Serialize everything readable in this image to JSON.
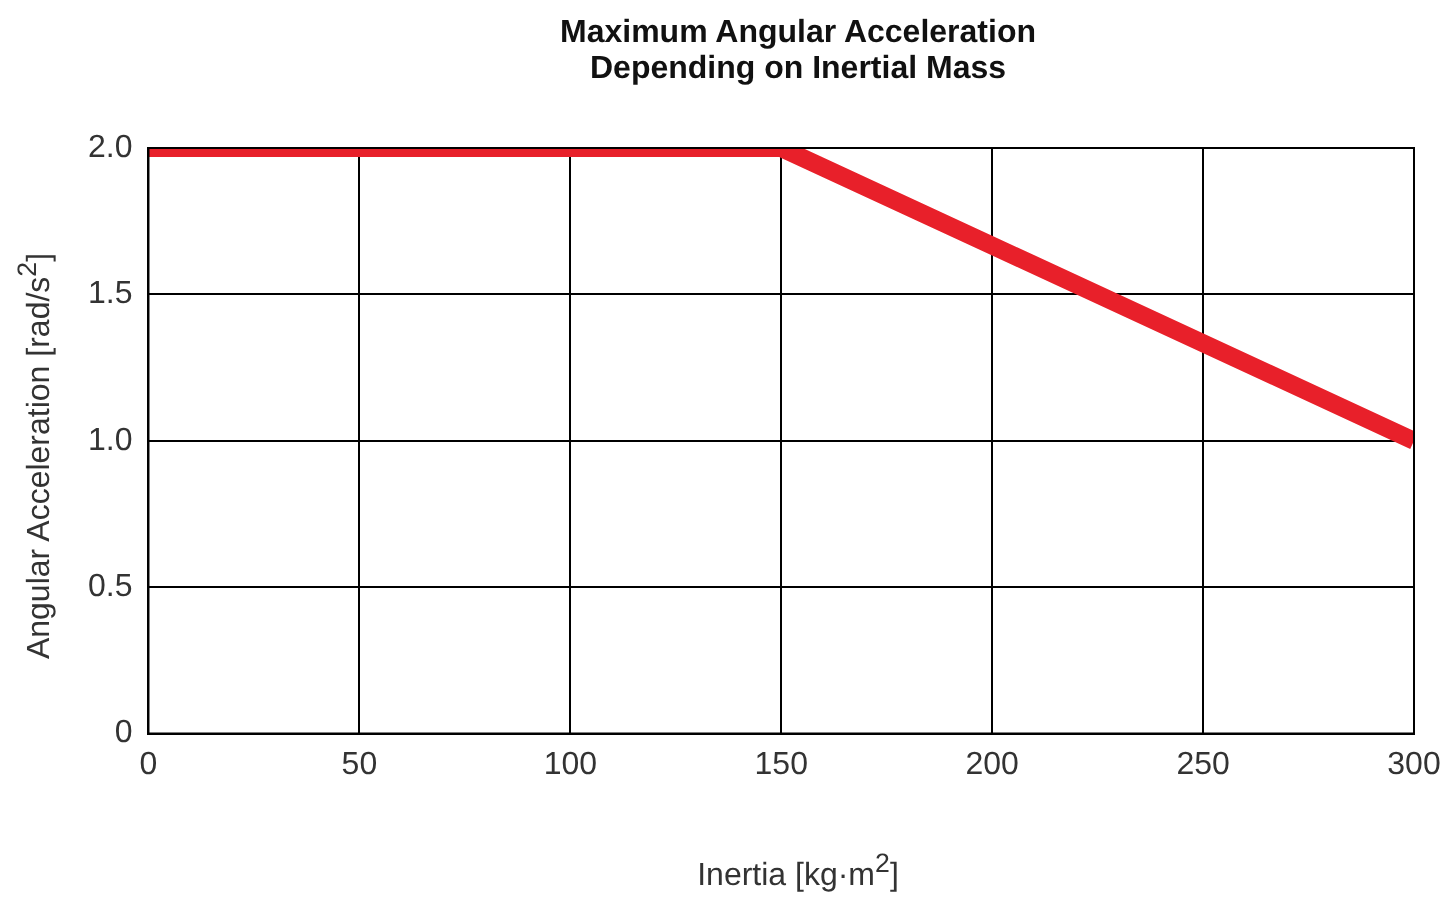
{
  "chart_data": {
    "type": "line",
    "title": "Maximum Angular Acceleration\nDepending on Inertial Mass",
    "xlabel": "Inertia [kg·m$^{2}$]",
    "ylabel": "Angular Acceleration [rad/s$^{2}$]",
    "x": [
      0,
      150,
      300
    ],
    "series": [
      {
        "color": "#e8202a",
        "values": [
          2.0,
          2.0,
          1.0
        ]
      }
    ],
    "xlim": [
      0,
      300
    ],
    "xticks": [
      0,
      50,
      100,
      150,
      200,
      250,
      300
    ],
    "ylim": [
      0,
      2
    ],
    "yticks": [
      {
        "value": 0,
        "label": "0"
      },
      {
        "value": 0.5,
        "label": "0.5"
      },
      {
        "value": 1,
        "label": "1.0"
      },
      {
        "value": 1.5,
        "label": "1.5"
      },
      {
        "value": 2,
        "label": "2.0"
      }
    ],
    "grid": true,
    "legend": false,
    "marker": "none",
    "line_style": "solid"
  }
}
